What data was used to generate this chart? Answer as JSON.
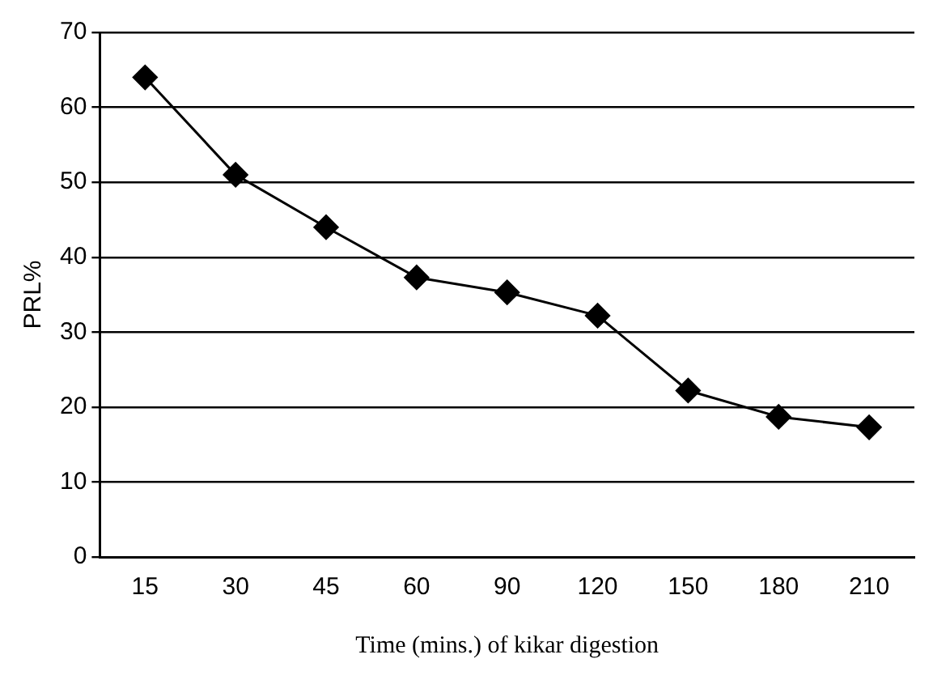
{
  "chart_data": {
    "type": "line",
    "xlabel": "Time (mins.) of kikar digestion",
    "ylabel": "PRL%",
    "categories": [
      "15",
      "30",
      "45",
      "60",
      "90",
      "120",
      "150",
      "180",
      "210"
    ],
    "series": [
      {
        "color": "#000000",
        "values": [
          64,
          51,
          44,
          37.3,
          35.3,
          32.2,
          22.2,
          18.7,
          17.3
        ]
      }
    ],
    "ylim": [
      0,
      70
    ],
    "yticks": [
      0,
      10,
      20,
      30,
      40,
      50,
      60,
      70
    ],
    "grid": "y",
    "marker": "diamond",
    "line_style": "solid",
    "legend": false
  }
}
